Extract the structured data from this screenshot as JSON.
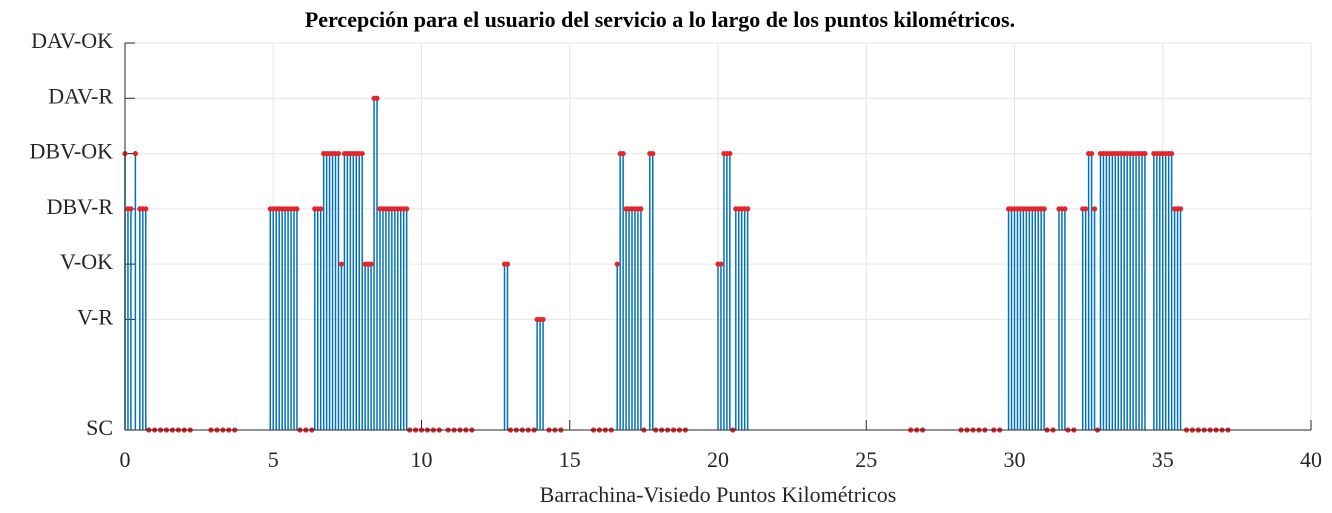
{
  "chart_data": {
    "type": "stem",
    "title": "Percepción para el usuario del servicio a lo largo de los puntos kilométricos.",
    "x_label": "Barrachina-Visiedo Puntos Kilométricos",
    "xlim": [
      0,
      40
    ],
    "xticks": [
      0,
      5,
      10,
      15,
      20,
      25,
      30,
      35,
      40
    ],
    "ylim": [
      0,
      7
    ],
    "yticks": [
      {
        "value": 0,
        "label": "SC"
      },
      {
        "value": 2,
        "label": "V-R"
      },
      {
        "value": 3,
        "label": "V-OK"
      },
      {
        "value": 4,
        "label": "DBV-R"
      },
      {
        "value": 5,
        "label": "DBV-OK"
      },
      {
        "value": 6,
        "label": "DAV-R"
      },
      {
        "value": 7,
        "label": "DAV-OK"
      }
    ],
    "grid": true,
    "color": "#0072bd",
    "marker_color": "#e3262a",
    "x": [
      0,
      0.1,
      0.2,
      0.35,
      0.5,
      0.6,
      0.7,
      0.8,
      1,
      1.2,
      1.4,
      1.6,
      1.8,
      2,
      2.2,
      2.9,
      3.1,
      3.3,
      3.5,
      3.7,
      4.9,
      5,
      5.1,
      5.2,
      5.3,
      5.4,
      5.5,
      5.6,
      5.7,
      5.8,
      5.9,
      6.1,
      6.3,
      6.4,
      6.5,
      6.6,
      6.7,
      6.8,
      6.9,
      7,
      7.1,
      7.2,
      7.3,
      7.4,
      7.5,
      7.6,
      7.7,
      7.8,
      7.9,
      8,
      8.1,
      8.2,
      8.3,
      8.4,
      8.5,
      8.6,
      8.7,
      8.8,
      8.9,
      9,
      9.1,
      9.2,
      9.3,
      9.4,
      9.5,
      9.6,
      9.8,
      10,
      10.2,
      10.4,
      10.6,
      10.9,
      11.1,
      11.3,
      11.5,
      11.7,
      12.8,
      12.9,
      13,
      13.2,
      13.4,
      13.6,
      13.8,
      13.9,
      14,
      14.1,
      14.3,
      14.5,
      14.7,
      15.8,
      16,
      16.2,
      16.4,
      16.6,
      16.7,
      16.8,
      16.9,
      17,
      17.1,
      17.2,
      17.3,
      17.4,
      17.5,
      17.7,
      17.8,
      17.9,
      18.1,
      18.3,
      18.5,
      18.7,
      18.9,
      20,
      20.1,
      20.2,
      20.3,
      20.4,
      20.5,
      20.6,
      20.7,
      20.8,
      20.9,
      21,
      26.5,
      26.7,
      26.9,
      28.2,
      28.4,
      28.6,
      28.8,
      29,
      29.3,
      29.5,
      29.8,
      29.9,
      30,
      30.1,
      30.2,
      30.3,
      30.4,
      30.5,
      30.6,
      30.7,
      30.8,
      30.9,
      31,
      31.1,
      31.3,
      31.5,
      31.6,
      31.7,
      31.8,
      32,
      32.3,
      32.4,
      32.5,
      32.6,
      32.7,
      32.8,
      32.9,
      33,
      33.1,
      33.2,
      33.3,
      33.4,
      33.5,
      33.6,
      33.7,
      33.8,
      33.9,
      34,
      34.1,
      34.2,
      34.3,
      34.4,
      34.7,
      34.8,
      34.9,
      35,
      35.1,
      35.2,
      35.3,
      35.4,
      35.5,
      35.6,
      35.8,
      36,
      36.2,
      36.4,
      36.6,
      36.8,
      37,
      37.2
    ],
    "values": [
      5,
      4,
      4,
      5,
      4,
      4,
      4,
      0,
      0,
      0,
      0,
      0,
      0,
      0,
      0,
      0,
      0,
      0,
      0,
      0,
      4,
      4,
      4,
      4,
      4,
      4,
      4,
      4,
      4,
      4,
      0,
      0,
      0,
      4,
      4,
      4,
      5,
      5,
      5,
      5,
      5,
      5,
      3,
      5,
      5,
      5,
      5,
      5,
      5,
      5,
      3,
      3,
      3,
      6,
      6,
      4,
      4,
      4,
      4,
      4,
      4,
      4,
      4,
      4,
      4,
      0,
      0,
      0,
      0,
      0,
      0,
      0,
      0,
      0,
      0,
      0,
      3,
      3,
      0,
      0,
      0,
      0,
      0,
      2,
      2,
      2,
      0,
      0,
      0,
      0,
      0,
      0,
      0,
      3,
      5,
      5,
      4,
      4,
      4,
      4,
      4,
      4,
      0,
      5,
      5,
      0,
      0,
      0,
      0,
      0,
      0,
      3,
      3,
      5,
      5,
      5,
      0,
      4,
      4,
      4,
      4,
      4,
      0,
      0,
      0,
      0,
      0,
      0,
      0,
      0,
      0,
      0,
      4,
      4,
      4,
      4,
      4,
      4,
      4,
      4,
      4,
      4,
      4,
      4,
      4,
      0,
      0,
      4,
      4,
      4,
      0,
      0,
      4,
      4,
      5,
      5,
      4,
      0,
      5,
      5,
      5,
      5,
      5,
      5,
      5,
      5,
      5,
      5,
      5,
      5,
      5,
      5,
      5,
      5,
      5,
      5,
      5,
      5,
      5,
      5,
      5,
      4,
      4,
      4,
      0,
      0,
      0,
      0,
      0,
      0,
      0,
      0
    ]
  }
}
